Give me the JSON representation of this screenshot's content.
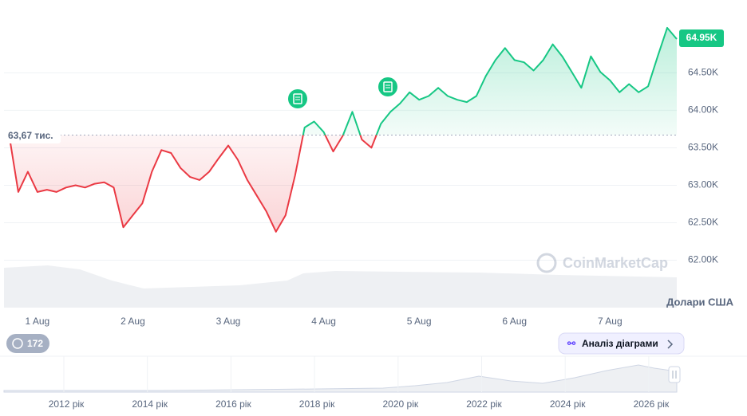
{
  "chart_data": {
    "type": "line",
    "x": [
      0.7,
      0.8,
      0.9,
      1.0,
      1.1,
      1.2,
      1.3,
      1.4,
      1.5,
      1.6,
      1.7,
      1.8,
      1.9,
      2.0,
      2.1,
      2.2,
      2.3,
      2.4,
      2.5,
      2.6,
      2.7,
      2.8,
      2.9,
      3.0,
      3.1,
      3.2,
      3.3,
      3.4,
      3.5,
      3.6,
      3.7,
      3.8,
      3.9,
      4.0,
      4.1,
      4.2,
      4.3,
      4.4,
      4.5,
      4.6,
      4.7,
      4.8,
      4.9,
      5.0,
      5.1,
      5.2,
      5.3,
      5.4,
      5.5,
      5.6,
      5.7,
      5.8,
      5.9,
      6.0,
      6.1,
      6.2,
      6.3,
      6.4,
      6.5,
      6.6,
      6.7,
      6.8,
      6.9,
      7.0,
      7.1,
      7.2,
      7.3,
      7.4,
      7.5,
      7.6,
      7.7
    ],
    "values": [
      63700,
      62910,
      63180,
      62910,
      62940,
      62910,
      62970,
      63000,
      62970,
      63020,
      63040,
      62970,
      62440,
      62600,
      62760,
      63180,
      63470,
      63430,
      63230,
      63110,
      63070,
      63180,
      63360,
      63530,
      63340,
      63070,
      62860,
      62650,
      62380,
      62600,
      63130,
      63770,
      63850,
      63710,
      63450,
      63660,
      63980,
      63610,
      63500,
      63820,
      63980,
      64090,
      64240,
      64140,
      64190,
      64300,
      64190,
      64140,
      64110,
      64190,
      64460,
      64670,
      64830,
      64670,
      64640,
      64530,
      64670,
      64880,
      64720,
      64510,
      64300,
      64720,
      64510,
      64400,
      64240,
      64350,
      64240,
      64320,
      64720,
      65100,
      64950
    ],
    "up_color": "#16c784",
    "down_color": "#ea3943",
    "xlim": [
      0.675,
      7.7
    ],
    "xticks": [
      {
        "value": 1,
        "label": "1 Aug"
      },
      {
        "value": 2,
        "label": "2 Aug"
      },
      {
        "value": 3,
        "label": "3 Aug"
      },
      {
        "value": 4,
        "label": "4 Aug"
      },
      {
        "value": 5,
        "label": "5 Aug"
      },
      {
        "value": 6,
        "label": "6 Aug"
      },
      {
        "value": 7,
        "label": "7 Aug"
      }
    ],
    "ylim": [
      61400,
      65450
    ],
    "yticks": [
      {
        "value": 62000,
        "label": "62.00K"
      },
      {
        "value": 62500,
        "label": "62.50K"
      },
      {
        "value": 63000,
        "label": "63.00K"
      },
      {
        "value": 63500,
        "label": "63.50K"
      },
      {
        "value": 64000,
        "label": "64.00K"
      },
      {
        "value": 64500,
        "label": "64.50K"
      }
    ],
    "grid": true,
    "baseline": {
      "value": 63670,
      "label": "63,67 тис."
    },
    "last_price": {
      "value": 64950,
      "label": "64.95K"
    },
    "y_axis_label": "Долари США"
  },
  "ui": {
    "watermark": "CoinMarketCap",
    "badge_count": "172",
    "analysis_button": "Аналіз діаграми",
    "navigator_labels": [
      "2012 рік",
      "2014 рік",
      "2016 рік",
      "2018 рік",
      "2020 рік",
      "2022 рік",
      "2024 рік",
      "2026 рік"
    ]
  }
}
